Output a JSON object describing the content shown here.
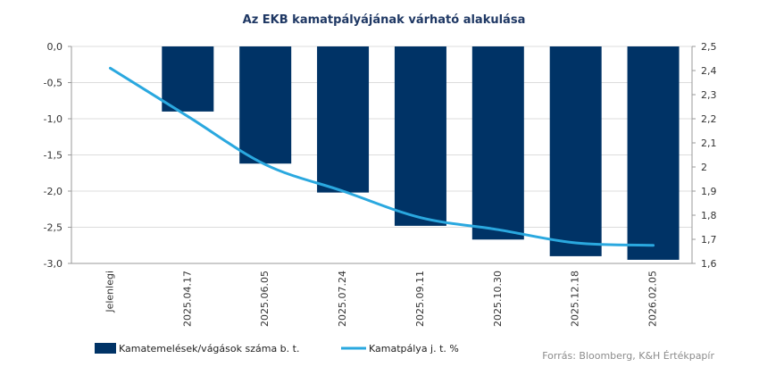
{
  "chart_data": {
    "type": "bar+line",
    "title": "Az EKB kamatpályájának várható alakulása",
    "categories": [
      "Jelenlegi",
      "2025.04.17",
      "2025.06.05",
      "2025.07.24",
      "2025.09.11",
      "2025.10.30",
      "2025.12.18",
      "2026.02.05"
    ],
    "series": [
      {
        "name": "Kamatemelések/vágások száma b. t.",
        "type": "bar",
        "axis": "left",
        "color": "#003366",
        "values": [
          0,
          -0.9,
          -1.62,
          -2.02,
          -2.48,
          -2.67,
          -2.9,
          -2.95
        ]
      },
      {
        "name": "Kamatpálya j. t. %",
        "type": "line",
        "axis": "right",
        "color": "#2aa8df",
        "values": [
          2.41,
          2.21,
          2.01,
          1.9,
          1.79,
          1.74,
          1.685,
          1.675
        ]
      }
    ],
    "y_left": {
      "range": [
        -3.0,
        0.0
      ],
      "ticks": [
        0.0,
        -0.5,
        -1.0,
        -1.5,
        -2.0,
        -2.5,
        -3.0
      ],
      "tick_labels": [
        "0,0",
        "-0,5",
        "-1,0",
        "-1,5",
        "-2,0",
        "-2,5",
        "-3,0"
      ]
    },
    "y_right": {
      "range": [
        1.6,
        2.5
      ],
      "ticks": [
        2.5,
        2.4,
        2.3,
        2.2,
        2.1,
        2.0,
        1.9,
        1.8,
        1.7,
        1.6
      ],
      "tick_labels": [
        "2,5",
        "2,4",
        "2,3",
        "2,2",
        "2,1",
        "2",
        "1,9",
        "1,8",
        "1,7",
        "1,6"
      ]
    },
    "grid": true,
    "legend_position": "bottom-left",
    "source": "Forrás: Bloomberg, K&H Értékpapír"
  }
}
